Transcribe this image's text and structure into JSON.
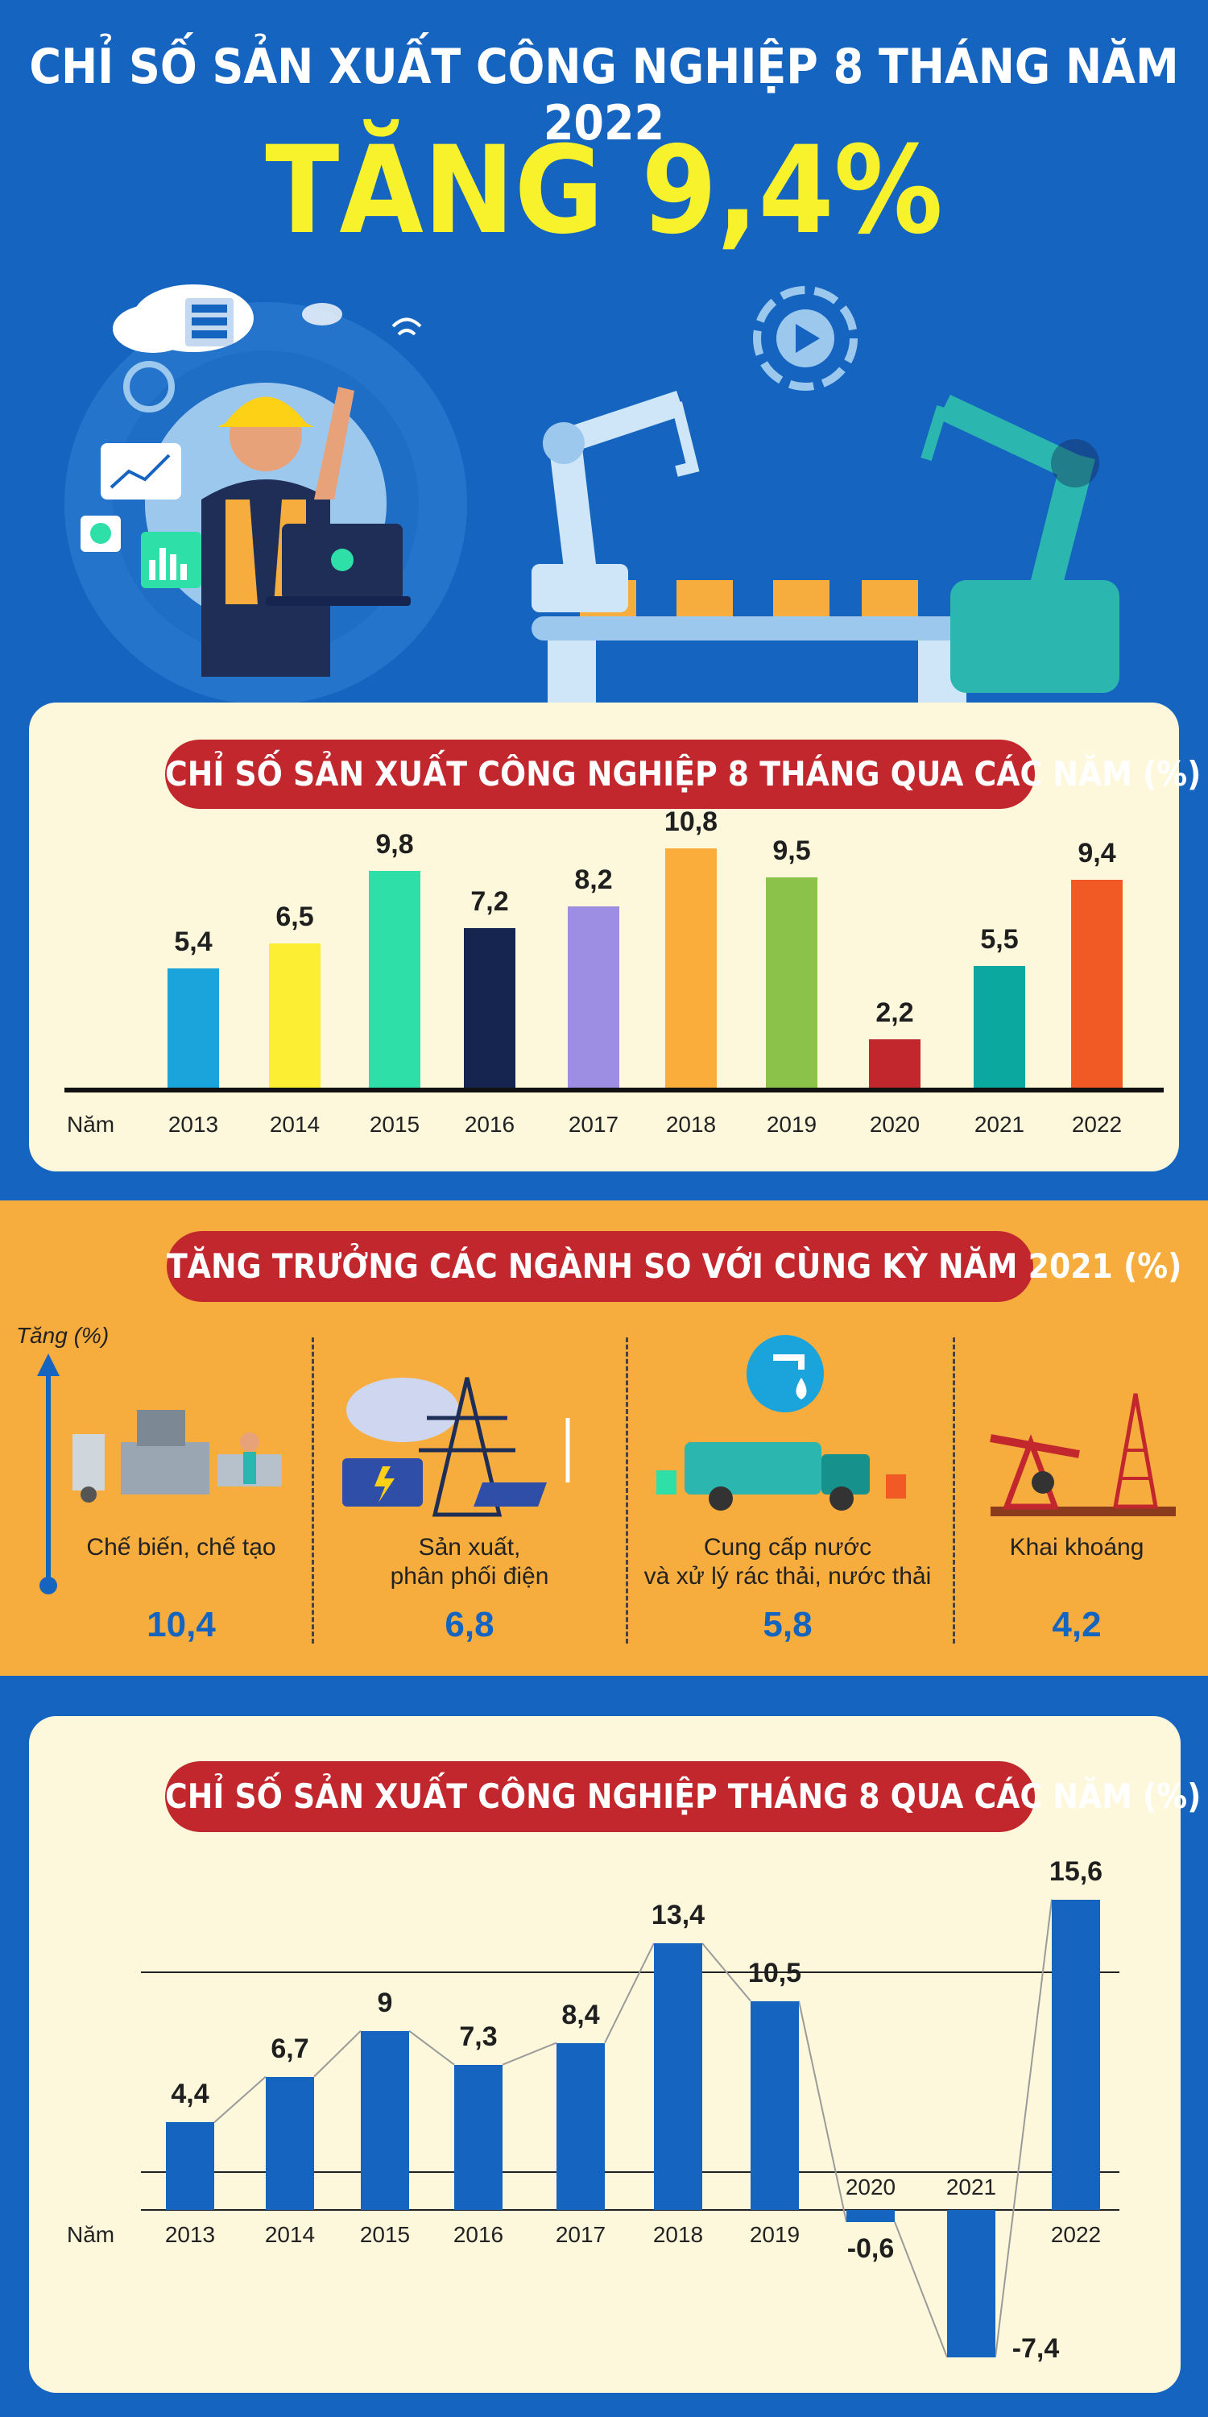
{
  "header": {
    "title": "CHỈ SỐ SẢN XUẤT CÔNG NGHIỆP 8 THÁNG NĂM 2022",
    "headline": "TĂNG 9,4%"
  },
  "colors": {
    "blue": "#1565c0",
    "panel": "#fdf8dc",
    "orange": "#f7ad3e",
    "pill_red": "#c1272d",
    "accent_yellow": "#f7f22c"
  },
  "illustration": {
    "icons": [
      "worker-icon",
      "laptop-icon",
      "cloud-server-icon",
      "gear-icon",
      "robot-arm-icon",
      "conveyor-belt-icon",
      "play-gear-icon",
      "chart-icon",
      "wifi-icon"
    ]
  },
  "chart_data": [
    {
      "type": "bar",
      "title": "CHỈ SỐ SẢN XUẤT CÔNG NGHIỆP 8 THÁNG QUA CÁC NĂM (%)",
      "xlabel": "Năm",
      "categories": [
        "2013",
        "2014",
        "2015",
        "2016",
        "2017",
        "2018",
        "2019",
        "2020",
        "2021",
        "2022"
      ],
      "values": [
        5.4,
        6.5,
        9.8,
        7.2,
        8.2,
        10.8,
        9.5,
        2.2,
        5.5,
        9.4
      ],
      "value_labels": [
        "5,4",
        "6,5",
        "9,8",
        "7,2",
        "8,2",
        "10,8",
        "9,5",
        "2,2",
        "5,5",
        "9,4"
      ],
      "colors": [
        "#1ba3dc",
        "#fcee32",
        "#2ee0a8",
        "#15254f",
        "#9d8ee4",
        "#fbad3b",
        "#8bc34a",
        "#c1272d",
        "#0aa89e",
        "#f15a24"
      ],
      "ylim": [
        0,
        11
      ]
    },
    {
      "type": "bar",
      "title": "TĂNG TRƯỞNG CÁC NGÀNH SO VỚI CÙNG KỲ NĂM 2021 (%)",
      "ylabel": "Tăng (%)",
      "categories": [
        "Chế biến, chế tạo",
        "Sản xuất, phân phối điện",
        "Cung cấp nước và xử lý rác thải, nước thải",
        "Khai khoáng"
      ],
      "category_lines": [
        [
          "Chế biến, chế tạo"
        ],
        [
          "Sản xuất,",
          "phân phối điện"
        ],
        [
          "Cung cấp nước",
          "và xử lý rác thải, nước thải"
        ],
        [
          "Khai khoáng"
        ]
      ],
      "values": [
        10.4,
        6.8,
        5.8,
        4.2
      ],
      "value_labels": [
        "10,4",
        "6,8",
        "5,8",
        "4,2"
      ]
    },
    {
      "type": "bar",
      "title": "CHỈ SỐ SẢN XUẤT CÔNG NGHIỆP THÁNG 8 QUA CÁC NĂM (%)",
      "xlabel": "Năm",
      "categories": [
        "2013",
        "2014",
        "2015",
        "2016",
        "2017",
        "2018",
        "2019",
        "2020",
        "2021",
        "2022"
      ],
      "values": [
        4.4,
        6.7,
        9,
        7.3,
        8.4,
        13.4,
        10.5,
        -0.6,
        -7.4,
        15.6
      ],
      "value_labels": [
        "4,4",
        "6,7",
        "9",
        "7,3",
        "8,4",
        "13,4",
        "10,5",
        "-0,6",
        "-7,4",
        "15,6"
      ],
      "bar_color": "#1565c0",
      "ylim": [
        -7.4,
        15.6
      ],
      "grid": true
    }
  ]
}
